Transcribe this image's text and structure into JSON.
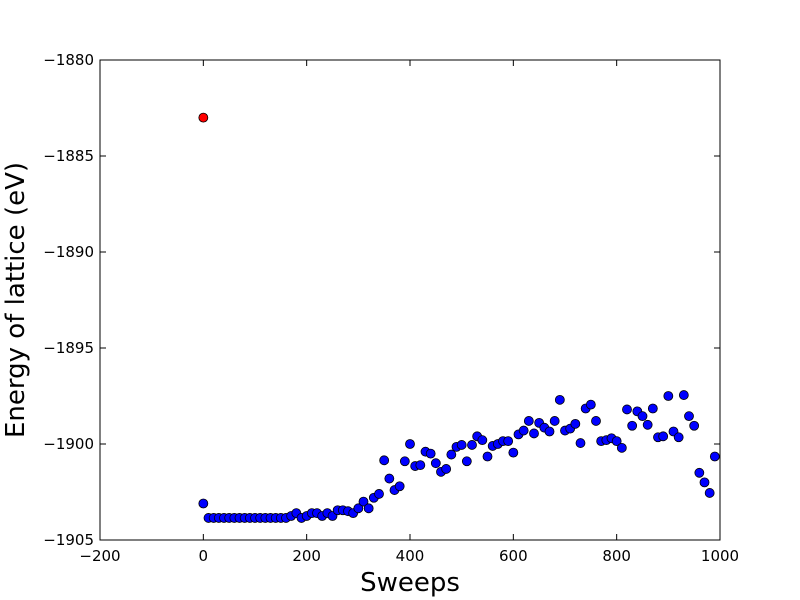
{
  "chart_data": {
    "type": "scatter",
    "title": "",
    "xlabel": "Sweeps",
    "ylabel": "Energy of lattice (eV)",
    "xlim": [
      -200,
      1000
    ],
    "ylim": [
      -1905,
      -1880
    ],
    "xticks": [
      -200,
      0,
      200,
      400,
      600,
      800,
      1000
    ],
    "yticks": [
      -1880,
      -1885,
      -1890,
      -1895,
      -1900,
      -1905
    ],
    "xtick_labels": [
      "−200",
      "0",
      "200",
      "400",
      "600",
      "800",
      "1000"
    ],
    "ytick_labels": [
      "−1880",
      "−1885",
      "−1890",
      "−1895",
      "−1900",
      "−1905"
    ],
    "grid": false,
    "series": [
      {
        "color": "#ff0000",
        "points": [
          [
            0,
            -1883
          ]
        ]
      },
      {
        "color": "#0000ff",
        "points": [
          [
            0,
            -1903.1
          ],
          [
            10,
            -1903.85
          ],
          [
            20,
            -1903.85
          ],
          [
            30,
            -1903.85
          ],
          [
            40,
            -1903.85
          ],
          [
            50,
            -1903.85
          ],
          [
            60,
            -1903.85
          ],
          [
            70,
            -1903.85
          ],
          [
            80,
            -1903.85
          ],
          [
            90,
            -1903.85
          ],
          [
            100,
            -1903.85
          ],
          [
            110,
            -1903.85
          ],
          [
            120,
            -1903.85
          ],
          [
            130,
            -1903.85
          ],
          [
            140,
            -1903.85
          ],
          [
            150,
            -1903.85
          ],
          [
            160,
            -1903.85
          ],
          [
            170,
            -1903.75
          ],
          [
            180,
            -1903.6
          ],
          [
            190,
            -1903.85
          ],
          [
            200,
            -1903.75
          ],
          [
            210,
            -1903.6
          ],
          [
            220,
            -1903.6
          ],
          [
            230,
            -1903.75
          ],
          [
            240,
            -1903.6
          ],
          [
            250,
            -1903.75
          ],
          [
            260,
            -1903.45
          ],
          [
            270,
            -1903.45
          ],
          [
            280,
            -1903.5
          ],
          [
            290,
            -1903.6
          ],
          [
            300,
            -1903.35
          ],
          [
            310,
            -1903.0
          ],
          [
            320,
            -1903.35
          ],
          [
            330,
            -1902.8
          ],
          [
            340,
            -1902.6
          ],
          [
            350,
            -1900.85
          ],
          [
            360,
            -1901.8
          ],
          [
            370,
            -1902.4
          ],
          [
            380,
            -1902.2
          ],
          [
            390,
            -1900.9
          ],
          [
            400,
            -1900.0
          ],
          [
            410,
            -1901.15
          ],
          [
            420,
            -1901.1
          ],
          [
            430,
            -1900.4
          ],
          [
            440,
            -1900.5
          ],
          [
            450,
            -1901.0
          ],
          [
            460,
            -1901.45
          ],
          [
            470,
            -1901.3
          ],
          [
            480,
            -1900.55
          ],
          [
            490,
            -1900.15
          ],
          [
            500,
            -1900.05
          ],
          [
            510,
            -1900.9
          ],
          [
            520,
            -1900.05
          ],
          [
            530,
            -1899.6
          ],
          [
            540,
            -1899.8
          ],
          [
            550,
            -1900.65
          ],
          [
            560,
            -1900.1
          ],
          [
            570,
            -1900.0
          ],
          [
            580,
            -1899.85
          ],
          [
            590,
            -1899.85
          ],
          [
            600,
            -1900.45
          ],
          [
            610,
            -1899.5
          ],
          [
            620,
            -1899.3
          ],
          [
            630,
            -1898.8
          ],
          [
            640,
            -1899.45
          ],
          [
            650,
            -1898.9
          ],
          [
            660,
            -1899.15
          ],
          [
            670,
            -1899.35
          ],
          [
            680,
            -1898.8
          ],
          [
            690,
            -1897.7
          ],
          [
            700,
            -1899.3
          ],
          [
            710,
            -1899.2
          ],
          [
            720,
            -1898.95
          ],
          [
            730,
            -1899.95
          ],
          [
            740,
            -1898.15
          ],
          [
            750,
            -1897.95
          ],
          [
            760,
            -1898.8
          ],
          [
            770,
            -1899.85
          ],
          [
            780,
            -1899.8
          ],
          [
            790,
            -1899.7
          ],
          [
            800,
            -1899.85
          ],
          [
            810,
            -1900.2
          ],
          [
            820,
            -1898.2
          ],
          [
            830,
            -1899.05
          ],
          [
            840,
            -1898.3
          ],
          [
            850,
            -1898.55
          ],
          [
            860,
            -1899.0
          ],
          [
            870,
            -1898.15
          ],
          [
            880,
            -1899.65
          ],
          [
            890,
            -1899.6
          ],
          [
            900,
            -1897.5
          ],
          [
            910,
            -1899.35
          ],
          [
            920,
            -1899.65
          ],
          [
            930,
            -1897.45
          ],
          [
            940,
            -1898.55
          ],
          [
            950,
            -1899.05
          ],
          [
            960,
            -1901.5
          ],
          [
            970,
            -1902.0
          ],
          [
            980,
            -1902.55
          ],
          [
            990,
            -1900.65
          ]
        ]
      }
    ]
  }
}
